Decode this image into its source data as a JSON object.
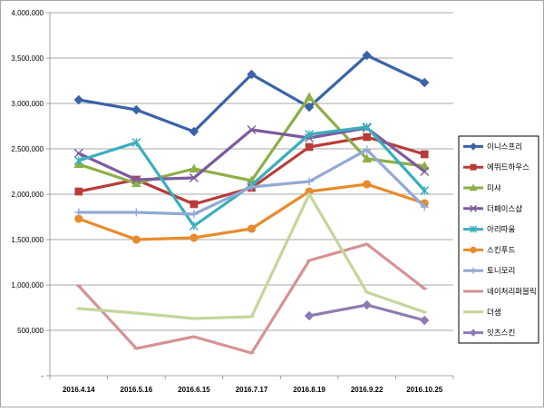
{
  "chart_data": {
    "type": "line",
    "title": "",
    "xlabel": "",
    "ylabel": "",
    "ylim": [
      0,
      4000000
    ],
    "y_ticks": [
      {
        "value": 0,
        "label": "-"
      },
      {
        "value": 500000,
        "label": "500,000"
      },
      {
        "value": 1000000,
        "label": "1,000,000"
      },
      {
        "value": 1500000,
        "label": "1,500,000"
      },
      {
        "value": 2000000,
        "label": "2,000,000"
      },
      {
        "value": 2500000,
        "label": "2,500,000"
      },
      {
        "value": 3000000,
        "label": "3,000,000"
      },
      {
        "value": 3500000,
        "label": "3,500,000"
      },
      {
        "value": 4000000,
        "label": "4,000,000"
      }
    ],
    "categories": [
      "2016.4.14",
      "2016.5.16",
      "2016.6.15",
      "2016.7.17",
      "2016.8.19",
      "2016.9.22",
      "2016.10.25"
    ],
    "grid": "horizontal",
    "legend_position": "right",
    "series": [
      {
        "name": "이니스프리",
        "color": "#3a63a8",
        "marker": "diamond",
        "values": [
          3040000,
          2930000,
          2690000,
          3320000,
          2960000,
          3530000,
          3230000
        ]
      },
      {
        "name": "에뛰드하우스",
        "color": "#b83c3a",
        "marker": "square",
        "values": [
          2030000,
          2160000,
          1890000,
          2070000,
          2520000,
          2630000,
          2440000
        ]
      },
      {
        "name": "미샤",
        "color": "#8eae48",
        "marker": "triangle",
        "values": [
          2330000,
          2120000,
          2280000,
          2150000,
          3070000,
          2390000,
          2310000
        ]
      },
      {
        "name": "더페이스샵",
        "color": "#7d5a9e",
        "marker": "x",
        "values": [
          2450000,
          2160000,
          2180000,
          2710000,
          2620000,
          2730000,
          2250000
        ]
      },
      {
        "name": "아리따움",
        "color": "#3aaebe",
        "marker": "asterisk",
        "values": [
          2370000,
          2570000,
          1650000,
          2100000,
          2660000,
          2740000,
          2040000
        ]
      },
      {
        "name": "스킨푸드",
        "color": "#e88b2c",
        "marker": "circle",
        "values": [
          1730000,
          1500000,
          1520000,
          1620000,
          2030000,
          2110000,
          1900000
        ]
      },
      {
        "name": "토니모리",
        "color": "#93a9d3",
        "marker": "plus",
        "values": [
          1800000,
          1800000,
          1780000,
          2080000,
          2140000,
          2490000,
          1860000
        ]
      },
      {
        "name": "네이처리퍼블릭",
        "color": "#d59394",
        "marker": "dash",
        "values": [
          990000,
          300000,
          430000,
          250000,
          1270000,
          1450000,
          960000
        ]
      },
      {
        "name": "더샘",
        "color": "#c3d69b",
        "marker": "dash",
        "values": [
          740000,
          690000,
          630000,
          650000,
          2000000,
          920000,
          700000
        ]
      },
      {
        "name": "잇츠스킨",
        "color": "#8f7bb2",
        "marker": "diamond",
        "values": [
          null,
          null,
          null,
          null,
          660000,
          780000,
          610000
        ]
      }
    ]
  }
}
